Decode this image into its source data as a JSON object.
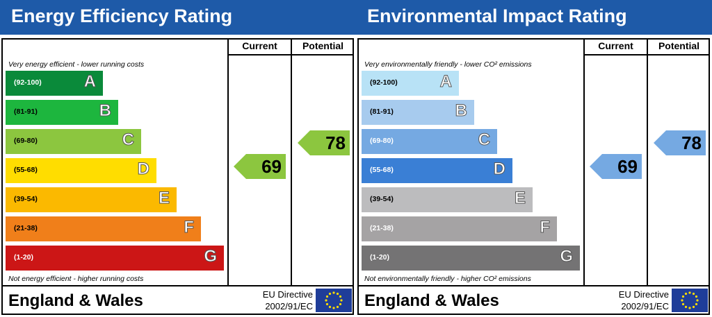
{
  "colors": {
    "title_bar": "#1e5aa8",
    "energy": {
      "A": "#0a8a3a",
      "B": "#1db63e",
      "C": "#8cc63f",
      "D": "#ffdd00",
      "E": "#fbb900",
      "F": "#f07f1a",
      "G": "#cc1616"
    },
    "environment": {
      "A": "#b8e2f6",
      "B": "#a7cbee",
      "C": "#75a9e2",
      "D": "#3a7fd5",
      "E": "#bcbcbe",
      "F": "#a5a3a4",
      "G": "#747374"
    },
    "current_energy_arrow": "#8cc63f",
    "potential_energy_arrow": "#8cc63f",
    "current_env_arrow": "#75a9e2",
    "potential_env_arrow": "#75a9e2",
    "eu_flag": "#1f3d99",
    "eu_stars": "#ffdd00"
  },
  "chart_data": [
    {
      "type": "bar",
      "title": "Energy Efficiency Rating",
      "top_caption": "Very energy efficient - lower running costs",
      "bottom_caption": "Not energy efficient - higher running costs",
      "columns": [
        "Current",
        "Potential"
      ],
      "bands": [
        {
          "letter": "A",
          "range": "(92-100)"
        },
        {
          "letter": "B",
          "range": "(81-91)"
        },
        {
          "letter": "C",
          "range": "(69-80)"
        },
        {
          "letter": "D",
          "range": "(55-68)"
        },
        {
          "letter": "E",
          "range": "(39-54)"
        },
        {
          "letter": "F",
          "range": "(21-38)"
        },
        {
          "letter": "G",
          "range": "(1-20)"
        }
      ],
      "current": 69,
      "potential": 78,
      "footer": "England & Wales",
      "directive_line1": "EU Directive",
      "directive_line2": "2002/91/EC"
    },
    {
      "type": "bar",
      "title": "Environmental Impact Rating",
      "top_caption": "Very environmentally friendly - lower CO² emissions",
      "bottom_caption": "Not environmentally friendly - higher CO² emissions",
      "columns": [
        "Current",
        "Potential"
      ],
      "bands": [
        {
          "letter": "A",
          "range": "(92-100)"
        },
        {
          "letter": "B",
          "range": "(81-91)"
        },
        {
          "letter": "C",
          "range": "(69-80)"
        },
        {
          "letter": "D",
          "range": "(55-68)"
        },
        {
          "letter": "E",
          "range": "(39-54)"
        },
        {
          "letter": "F",
          "range": "(21-38)"
        },
        {
          "letter": "G",
          "range": "(1-20)"
        }
      ],
      "current": 69,
      "potential": 78,
      "footer": "England & Wales",
      "directive_line1": "EU Directive",
      "directive_line2": "2002/91/EC"
    }
  ]
}
